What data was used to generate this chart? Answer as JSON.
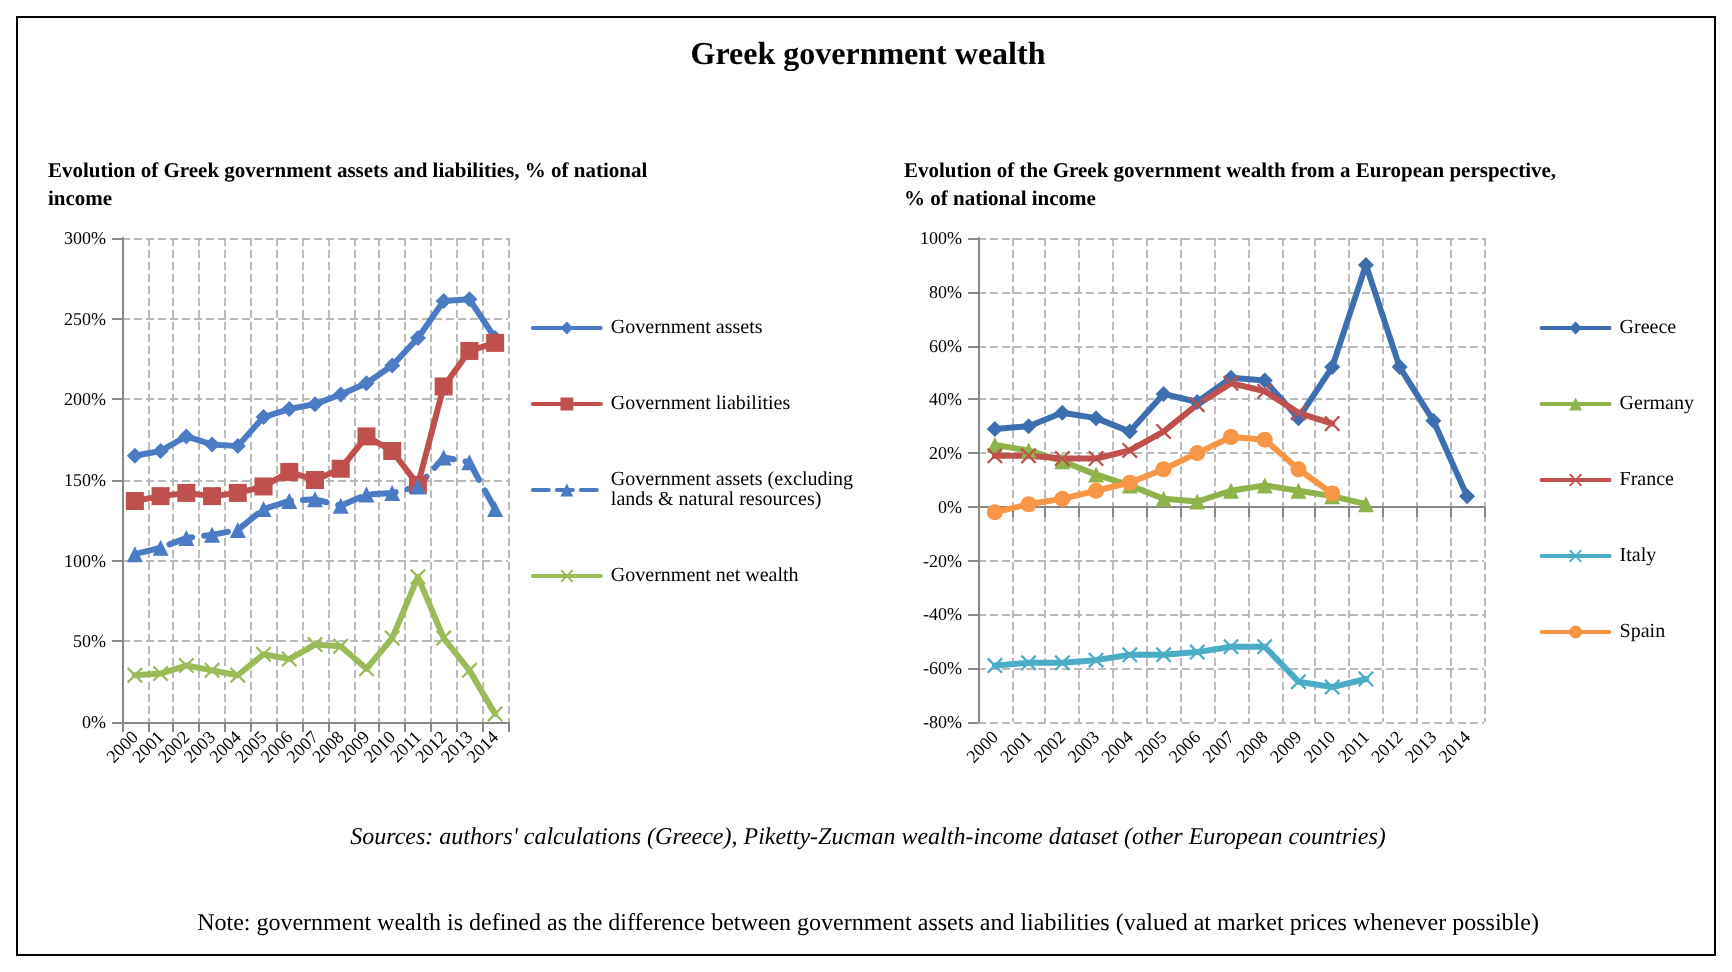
{
  "chart_data": [
    {
      "type": "other",
      "title": "Greek government wealth",
      "annotations": [
        "Sources: authors' calculations (Greece), Piketty-Zucman wealth-income dataset (other European countries)",
        "Note: government wealth is defined as the difference between government assets and liabilities (valued at market prices whenever possible)"
      ]
    },
    {
      "type": "line",
      "title": "Evolution of Greek government assets and liabilities, % of national income",
      "categories": [
        "2000",
        "2001",
        "2002",
        "2003",
        "2004",
        "2005",
        "2006",
        "2007",
        "2008",
        "2009",
        "2010",
        "2011",
        "2012",
        "2013",
        "2014"
      ],
      "ylim": [
        0,
        300
      ],
      "yticks": [
        {
          "value": 0,
          "label": "0%"
        },
        {
          "value": 50,
          "label": "50%"
        },
        {
          "value": 100,
          "label": "100%"
        },
        {
          "value": 150,
          "label": "150%"
        },
        {
          "value": 200,
          "label": "200%"
        },
        {
          "value": 250,
          "label": "250%"
        },
        {
          "value": 300,
          "label": "300%"
        }
      ],
      "grid": true,
      "legend": "right",
      "series": [
        {
          "name": "Government assets",
          "color": "#4a7bc4",
          "marker": "diamond",
          "line_style": "solid",
          "values": [
            165,
            168,
            177,
            172,
            171,
            189,
            194,
            197,
            203,
            210,
            221,
            238,
            261,
            262,
            238
          ]
        },
        {
          "name": "Government liabilities",
          "color": "#c0504d",
          "marker": "square",
          "line_style": "solid",
          "values": [
            137,
            140,
            142,
            140,
            142,
            146,
            155,
            150,
            157,
            177,
            168,
            147,
            208,
            230,
            235
          ]
        },
        {
          "name": "Government assets (excluding lands & natural resources)",
          "color": "#4a7bc4",
          "marker": "triangle",
          "line_style": "dashed",
          "values": [
            104,
            108,
            114,
            116,
            119,
            132,
            137,
            138,
            134,
            141,
            142,
            146,
            164,
            161,
            132
          ]
        },
        {
          "name": "Government net wealth",
          "color": "#9bbb59",
          "marker": "cross",
          "line_style": "solid",
          "values": [
            29,
            30,
            35,
            32,
            29,
            42,
            39,
            48,
            47,
            33,
            52,
            90,
            52,
            32,
            5
          ]
        }
      ]
    },
    {
      "type": "line",
      "title": "Evolution of the Greek government wealth from a European perspective, % of national income",
      "categories": [
        "2000",
        "2001",
        "2002",
        "2003",
        "2004",
        "2005",
        "2006",
        "2007",
        "2008",
        "2009",
        "2010",
        "2011",
        "2012",
        "2013",
        "2014"
      ],
      "ylim": [
        -80,
        100
      ],
      "yticks": [
        {
          "value": -80,
          "label": "-80%"
        },
        {
          "value": -60,
          "label": "-60%"
        },
        {
          "value": -40,
          "label": "-40%"
        },
        {
          "value": -20,
          "label": "-20%"
        },
        {
          "value": 0,
          "label": "0%"
        },
        {
          "value": 20,
          "label": "20%"
        },
        {
          "value": 40,
          "label": "40%"
        },
        {
          "value": 60,
          "label": "60%"
        },
        {
          "value": 80,
          "label": "80%"
        },
        {
          "value": 100,
          "label": "100%"
        }
      ],
      "grid": true,
      "legend": "right",
      "series": [
        {
          "name": "Greece",
          "color": "#3d6fb0",
          "marker": "diamond",
          "values": [
            29,
            30,
            35,
            33,
            28,
            42,
            39,
            48,
            47,
            33,
            52,
            90,
            52,
            32,
            4
          ]
        },
        {
          "name": "Germany",
          "color": "#8db34a",
          "marker": "triangle",
          "values": [
            23,
            21,
            17,
            12,
            8,
            3,
            2,
            6,
            8,
            6,
            4,
            1,
            null,
            null,
            null
          ]
        },
        {
          "name": "France",
          "color": "#c0504d",
          "marker": "cross",
          "values": [
            19,
            19,
            18,
            18,
            21,
            28,
            38,
            46,
            43,
            35,
            31,
            null,
            null,
            null,
            null
          ]
        },
        {
          "name": "Italy",
          "color": "#4bacc6",
          "marker": "cross",
          "values": [
            -59,
            -58,
            -58,
            -57,
            -55,
            -55,
            -54,
            -52,
            -52,
            -65,
            -67,
            -64,
            null,
            null,
            null
          ]
        },
        {
          "name": "Spain",
          "color": "#f79646",
          "marker": "circle",
          "values": [
            -2,
            1,
            3,
            6,
            9,
            14,
            20,
            26,
            25,
            14,
            5,
            null,
            null,
            null,
            null
          ]
        }
      ]
    }
  ]
}
